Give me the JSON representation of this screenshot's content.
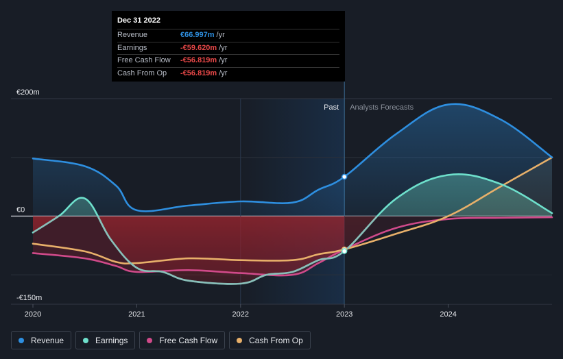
{
  "tooltip": {
    "date": "Dec 31 2022",
    "rows": [
      {
        "label": "Revenue",
        "value": "€66.997m",
        "unit": "/yr",
        "color": "#2e8fe0"
      },
      {
        "label": "Earnings",
        "value": "-€59.620m",
        "unit": "/yr",
        "color": "#e84848"
      },
      {
        "label": "Free Cash Flow",
        "value": "-€56.819m",
        "unit": "/yr",
        "color": "#e84848"
      },
      {
        "label": "Cash From Op",
        "value": "-€56.819m",
        "unit": "/yr",
        "color": "#e84848"
      }
    ]
  },
  "legend": [
    {
      "label": "Revenue",
      "color": "#2e8fe0"
    },
    {
      "label": "Earnings",
      "color": "#6ee0cc"
    },
    {
      "label": "Free Cash Flow",
      "color": "#d04a8a"
    },
    {
      "label": "Cash From Op",
      "color": "#e8b06a"
    }
  ],
  "chart_data": {
    "type": "line",
    "ylim": [
      -150,
      200
    ],
    "y_tick_labels": [
      "€200m",
      "€0",
      "-€150m"
    ],
    "y_ticks": [
      200,
      0,
      -150
    ],
    "x_ticks": [
      2020,
      2021,
      2022,
      2023,
      2024
    ],
    "x_tick_labels": [
      "2020",
      "2021",
      "2022",
      "2023",
      "2024"
    ],
    "xlim": [
      2019.9,
      2025.0
    ],
    "divider_x": 2023.0,
    "past_label": "Past",
    "forecast_label": "Analysts Forecasts",
    "series": [
      {
        "name": "Revenue",
        "color": "#2e8fe0",
        "points": [
          [
            2020.0,
            98
          ],
          [
            2020.5,
            85
          ],
          [
            2020.8,
            52
          ],
          [
            2021.0,
            10
          ],
          [
            2021.5,
            18
          ],
          [
            2022.0,
            25
          ],
          [
            2022.5,
            23
          ],
          [
            2022.75,
            45
          ],
          [
            2023.0,
            67
          ],
          [
            2023.5,
            140
          ],
          [
            2024.0,
            190
          ],
          [
            2024.5,
            165
          ],
          [
            2025.0,
            100
          ]
        ]
      },
      {
        "name": "Earnings",
        "color": "#6ee0cc",
        "points": [
          [
            2020.0,
            -28
          ],
          [
            2020.25,
            0
          ],
          [
            2020.5,
            30
          ],
          [
            2020.75,
            -40
          ],
          [
            2021.0,
            -88
          ],
          [
            2021.25,
            -95
          ],
          [
            2021.5,
            -110
          ],
          [
            2022.0,
            -115
          ],
          [
            2022.25,
            -100
          ],
          [
            2022.5,
            -95
          ],
          [
            2022.75,
            -75
          ],
          [
            2023.0,
            -59.6
          ],
          [
            2023.5,
            30
          ],
          [
            2024.0,
            70
          ],
          [
            2024.5,
            55
          ],
          [
            2025.0,
            5
          ]
        ]
      },
      {
        "name": "Free Cash Flow",
        "color": "#d04a8a",
        "points": [
          [
            2020.0,
            -63
          ],
          [
            2020.5,
            -72
          ],
          [
            2020.8,
            -85
          ],
          [
            2021.0,
            -95
          ],
          [
            2021.5,
            -92
          ],
          [
            2022.0,
            -97
          ],
          [
            2022.5,
            -100
          ],
          [
            2022.75,
            -80
          ],
          [
            2023.0,
            -56.8
          ],
          [
            2023.5,
            -20
          ],
          [
            2024.0,
            -5
          ],
          [
            2024.5,
            -3
          ],
          [
            2025.0,
            -2
          ]
        ]
      },
      {
        "name": "Cash From Op",
        "color": "#e8b06a",
        "points": [
          [
            2020.0,
            -47
          ],
          [
            2020.5,
            -60
          ],
          [
            2020.8,
            -78
          ],
          [
            2021.0,
            -80
          ],
          [
            2021.5,
            -72
          ],
          [
            2022.0,
            -75
          ],
          [
            2022.5,
            -75
          ],
          [
            2022.75,
            -65
          ],
          [
            2023.0,
            -56.8
          ],
          [
            2023.5,
            -30
          ],
          [
            2024.0,
            0
          ],
          [
            2024.5,
            50
          ],
          [
            2025.0,
            100
          ]
        ]
      }
    ],
    "markers": [
      {
        "x": 2023.0,
        "y": 67,
        "color": "#2e8fe0"
      },
      {
        "x": 2023.0,
        "y": -56.8,
        "color": "#e8b06a"
      },
      {
        "x": 2023.0,
        "y": -59.6,
        "color": "#6ee0cc"
      }
    ]
  }
}
